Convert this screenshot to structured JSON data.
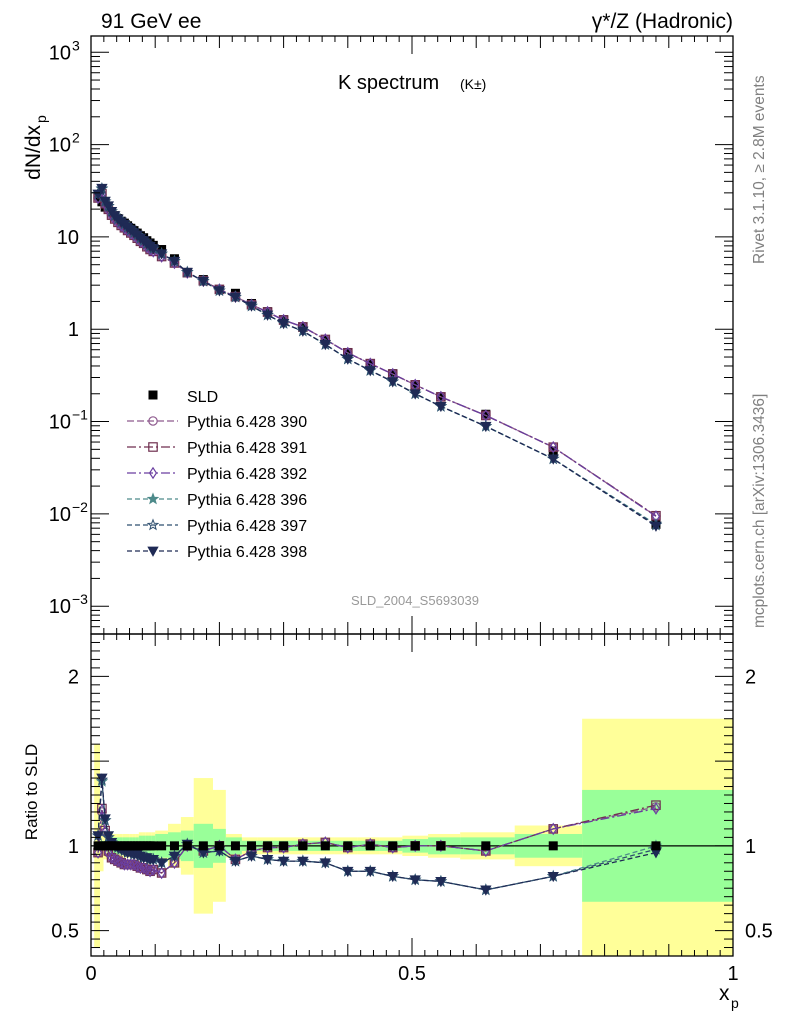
{
  "header": {
    "left": "91 GeV ee",
    "right": "γ*/Z (Hadronic)"
  },
  "side": {
    "rivet": "Rivet 3.1.10, ≥ 2.8M events",
    "mcplots": "mcplots.cern.ch [arXiv:1306.3436]"
  },
  "chart_data": {
    "type": "scatter",
    "title": "K spectrum",
    "title_suffix": "(K±)",
    "watermark": "SLD_2004_S5693039",
    "xlabel": "x",
    "xlabel_sub": "p",
    "ylabel": "dN/dx",
    "ylabel_sub": "p",
    "ratio_ylabel": "Ratio to SLD",
    "xlim": [
      0,
      1
    ],
    "ylim_main": [
      0.0005,
      1500
    ],
    "yscale_main": "log",
    "ylim_ratio": [
      0.35,
      2.25
    ],
    "x_ticks": [
      0,
      0.5,
      1
    ],
    "x_tick_labels": [
      "0",
      "0.5",
      "1"
    ],
    "main_tick_labels": [
      {
        "v": 0.001,
        "base": "10",
        "exp": "−3"
      },
      {
        "v": 0.01,
        "base": "10",
        "exp": "−2"
      },
      {
        "v": 0.1,
        "base": "10",
        "exp": "−1"
      },
      {
        "v": 1,
        "base": "1",
        "exp": ""
      },
      {
        "v": 10,
        "base": "10",
        "exp": ""
      },
      {
        "v": 100,
        "base": "10",
        "exp": "2"
      },
      {
        "v": 1000,
        "base": "10",
        "exp": "3"
      }
    ],
    "ratio_ticks": [
      0.5,
      1,
      2
    ],
    "ratio_tick_labels": [
      "0.5",
      "1",
      "2"
    ],
    "legend_position": "left-middle",
    "x": [
      0.011,
      0.017,
      0.022,
      0.027,
      0.032,
      0.037,
      0.042,
      0.047,
      0.052,
      0.057,
      0.062,
      0.067,
      0.072,
      0.077,
      0.082,
      0.087,
      0.092,
      0.097,
      0.11,
      0.13,
      0.15,
      0.175,
      0.2,
      0.225,
      0.25,
      0.275,
      0.3,
      0.33,
      0.365,
      0.4,
      0.435,
      0.47,
      0.505,
      0.545,
      0.615,
      0.72,
      0.88
    ],
    "data": {
      "name": "SLD",
      "values": [
        27.5,
        24.0,
        21.0,
        20.5,
        18.5,
        17.0,
        15.8,
        14.8,
        14.1,
        13.2,
        12.4,
        11.7,
        11.0,
        10.3,
        9.8,
        9.1,
        8.6,
        8.1,
        7.3,
        5.8,
        4.1,
        3.45,
        2.7,
        2.45,
        1.9,
        1.55,
        1.27,
        1.05,
        0.76,
        0.56,
        0.42,
        0.33,
        0.25,
        0.185,
        0.12,
        0.048,
        0.0077
      ],
      "ratio_band_inner": [
        0.02,
        0.03,
        0.03,
        0.04,
        0.05,
        0.05,
        0.05,
        0.05,
        0.05,
        0.05,
        0.05,
        0.05,
        0.05,
        0.06,
        0.06,
        0.06,
        0.06,
        0.06,
        0.07,
        0.08,
        0.09,
        0.13,
        0.1,
        0.05,
        0.03,
        0.03,
        0.03,
        0.03,
        0.03,
        0.03,
        0.03,
        0.03,
        0.04,
        0.05,
        0.05,
        0.07,
        0.33
      ],
      "ratio_band_outer": [
        0.6,
        0.15,
        0.08,
        0.07,
        0.07,
        0.07,
        0.07,
        0.07,
        0.07,
        0.07,
        0.07,
        0.07,
        0.07,
        0.08,
        0.08,
        0.08,
        0.08,
        0.08,
        0.09,
        0.13,
        0.17,
        0.4,
        0.33,
        0.07,
        0.05,
        0.05,
        0.05,
        0.05,
        0.05,
        0.05,
        0.05,
        0.05,
        0.06,
        0.07,
        0.08,
        0.12,
        0.75
      ],
      "bins": [
        0.005,
        0.014,
        0.0195,
        0.0245,
        0.0295,
        0.0345,
        0.0395,
        0.0445,
        0.0495,
        0.0545,
        0.0595,
        0.0645,
        0.0695,
        0.0745,
        0.0795,
        0.0845,
        0.0895,
        0.0945,
        0.1,
        0.12,
        0.14,
        0.16,
        0.19,
        0.21,
        0.235,
        0.26,
        0.285,
        0.31,
        0.345,
        0.38,
        0.415,
        0.45,
        0.485,
        0.525,
        0.575,
        0.66,
        0.765,
        1.0
      ]
    },
    "series": [
      {
        "name": "Pythia 6.428 390",
        "color": "#8e5a8e",
        "marker": "circle-open",
        "dash": "7,3",
        "ratio": [
          0.96,
          1.2,
          1.08,
          0.96,
          0.93,
          0.92,
          0.91,
          0.9,
          0.89,
          0.89,
          0.89,
          0.89,
          0.88,
          0.87,
          0.87,
          0.86,
          0.85,
          0.86,
          0.84,
          0.9,
          1.0,
          0.97,
          1.0,
          0.92,
          0.97,
          0.99,
          0.99,
          1.01,
          1.02,
          0.99,
          1.01,
          0.99,
          1.0,
          1.0,
          0.97,
          1.1,
          1.23
        ]
      },
      {
        "name": "Pythia 6.428 391",
        "color": "#6f2f4f",
        "marker": "square-open",
        "dash": "9,3,2,3",
        "ratio": [
          0.96,
          1.22,
          1.09,
          0.97,
          0.93,
          0.92,
          0.91,
          0.9,
          0.89,
          0.89,
          0.89,
          0.89,
          0.88,
          0.87,
          0.87,
          0.86,
          0.85,
          0.86,
          0.84,
          0.9,
          1.0,
          0.97,
          1.0,
          0.92,
          0.97,
          0.99,
          0.99,
          1.01,
          1.02,
          0.99,
          1.01,
          0.99,
          1.0,
          1.0,
          0.97,
          1.1,
          1.24
        ]
      },
      {
        "name": "Pythia 6.428 392",
        "color": "#6a3fa0",
        "marker": "diamond-open",
        "dash": "9,3,2,3",
        "ratio": [
          0.96,
          1.21,
          1.08,
          0.96,
          0.93,
          0.92,
          0.91,
          0.9,
          0.89,
          0.89,
          0.89,
          0.89,
          0.88,
          0.87,
          0.87,
          0.86,
          0.85,
          0.86,
          0.84,
          0.9,
          1.0,
          0.97,
          1.0,
          0.92,
          0.97,
          0.99,
          0.99,
          1.01,
          1.02,
          0.99,
          1.01,
          0.99,
          1.0,
          1.0,
          0.97,
          1.1,
          1.22
        ]
      },
      {
        "name": "Pythia 6.428 396",
        "color": "#4d8a8a",
        "marker": "star-filled",
        "dash": "5,3",
        "ratio": [
          1.06,
          1.38,
          1.15,
          1.05,
          1.02,
          1.0,
          0.99,
          0.98,
          0.97,
          0.96,
          0.96,
          0.95,
          0.95,
          0.94,
          0.93,
          0.93,
          0.92,
          0.92,
          0.9,
          0.94,
          1.01,
          0.96,
          0.97,
          0.91,
          0.94,
          0.92,
          0.91,
          0.91,
          0.9,
          0.85,
          0.85,
          0.82,
          0.8,
          0.79,
          0.74,
          0.82,
          1.0
        ]
      },
      {
        "name": "Pythia 6.428 397",
        "color": "#2f4f6f",
        "marker": "star-open",
        "dash": "5,3",
        "ratio": [
          1.06,
          1.39,
          1.15,
          1.05,
          1.02,
          1.0,
          0.99,
          0.98,
          0.97,
          0.96,
          0.96,
          0.95,
          0.95,
          0.94,
          0.93,
          0.93,
          0.92,
          0.92,
          0.9,
          0.94,
          1.01,
          0.96,
          0.97,
          0.91,
          0.94,
          0.92,
          0.91,
          0.91,
          0.9,
          0.85,
          0.85,
          0.82,
          0.8,
          0.79,
          0.74,
          0.82,
          0.98
        ]
      },
      {
        "name": "Pythia 6.428 398",
        "color": "#1f2a55",
        "marker": "triangle-down",
        "dash": "5,3",
        "ratio": [
          1.06,
          1.4,
          1.16,
          1.06,
          1.02,
          1.0,
          0.99,
          0.98,
          0.97,
          0.96,
          0.96,
          0.95,
          0.95,
          0.94,
          0.93,
          0.93,
          0.92,
          0.92,
          0.9,
          0.94,
          1.01,
          0.96,
          0.97,
          0.91,
          0.94,
          0.92,
          0.91,
          0.91,
          0.9,
          0.85,
          0.85,
          0.82,
          0.8,
          0.79,
          0.74,
          0.82,
          0.96
        ]
      }
    ]
  }
}
